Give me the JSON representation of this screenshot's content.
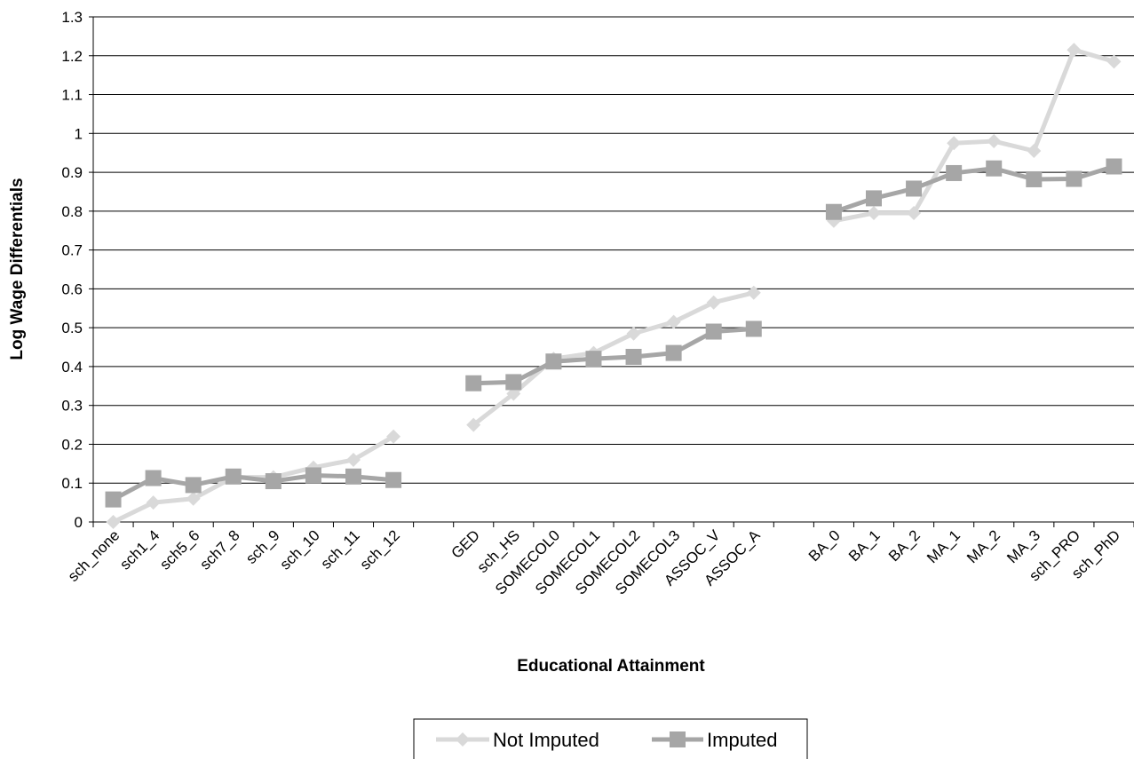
{
  "chart_data": {
    "type": "line",
    "title": "",
    "xlabel": "Educational Attainment",
    "ylabel": "Log Wage Differentials",
    "ylim": [
      0,
      1.3
    ],
    "yticks": [
      "0",
      "0.1",
      "0.2",
      "0.3",
      "0.4",
      "0.5",
      "0.6",
      "0.7",
      "0.8",
      "0.9",
      "1",
      "1.1",
      "1.2",
      "1.3"
    ],
    "grid": true,
    "legend_position": "bottom",
    "categories": [
      "sch_none",
      "sch1_4",
      "sch5_6",
      "sch7_8",
      "sch_9",
      "sch_10",
      "sch_11",
      "sch_12",
      "",
      "GED",
      "sch_HS",
      "SOMECOL0",
      "SOMECOL1",
      "SOMECOL2",
      "SOMECOL3",
      "ASSOC_V",
      "ASSOC_A",
      "",
      "BA_0",
      "BA_1",
      "BA_2",
      "MA_1",
      "MA_2",
      "MA_3",
      "sch_PRO",
      "sch_PhD"
    ],
    "series": [
      {
        "name": "Not Imputed",
        "color": "#d9d9d9",
        "marker": "diamond",
        "values": [
          0.0,
          0.05,
          0.06,
          0.115,
          0.115,
          0.14,
          0.16,
          0.22,
          null,
          0.25,
          0.33,
          0.42,
          0.435,
          0.485,
          0.515,
          0.565,
          0.59,
          null,
          0.775,
          0.795,
          0.795,
          0.975,
          0.98,
          0.955,
          1.215,
          1.185
        ]
      },
      {
        "name": "Imputed",
        "color": "#a6a6a6",
        "marker": "square",
        "values": [
          0.058,
          0.113,
          0.095,
          0.117,
          0.105,
          0.12,
          0.117,
          0.108,
          null,
          0.357,
          0.36,
          0.413,
          0.42,
          0.425,
          0.435,
          0.49,
          0.497,
          null,
          0.798,
          0.833,
          0.858,
          0.898,
          0.91,
          0.882,
          0.883,
          0.915
        ]
      }
    ]
  }
}
